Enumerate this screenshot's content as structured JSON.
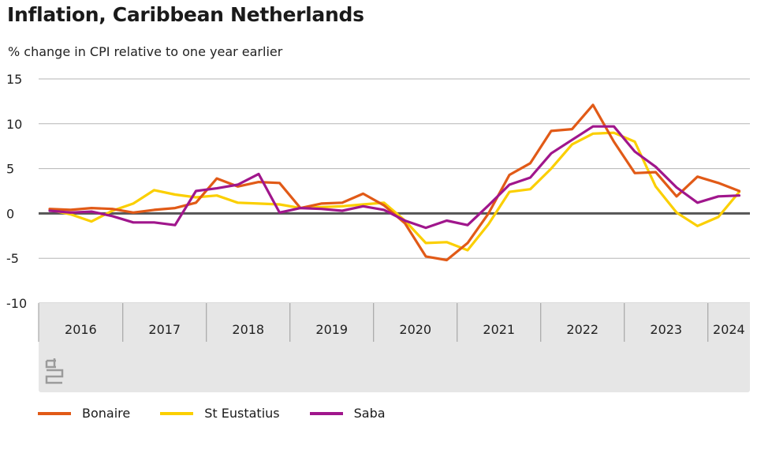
{
  "colors": {
    "bonaire": "#e15a17",
    "st_eustatius": "#fbcf00",
    "saba": "#a0168c",
    "band": "#e6e6e6"
  },
  "chart_data": {
    "type": "line",
    "title": "Inflation, Caribbean Netherlands",
    "ylabel": "% change in CPI relative to one year earlier",
    "ylim": [
      -10,
      15
    ],
    "yticks": [
      "15",
      "10",
      "5",
      "0",
      "-5",
      "-10"
    ],
    "year_labels": [
      "2016",
      "2017",
      "2018",
      "2019",
      "2020",
      "2021",
      "2022",
      "2023",
      "2024"
    ],
    "logo": "cbs",
    "x_quarters": [
      "2016 Q1",
      "2016 Q2",
      "2016 Q3",
      "2016 Q4",
      "2017 Q1",
      "2017 Q2",
      "2017 Q3",
      "2017 Q4",
      "2018 Q1",
      "2018 Q2",
      "2018 Q3",
      "2018 Q4",
      "2019 Q1",
      "2019 Q2",
      "2019 Q3",
      "2019 Q4",
      "2020 Q1",
      "2020 Q2",
      "2020 Q3",
      "2020 Q4",
      "2021 Q1",
      "2021 Q2",
      "2021 Q3",
      "2021 Q4",
      "2022 Q1",
      "2022 Q2",
      "2022 Q3",
      "2022 Q4",
      "2023 Q1",
      "2023 Q2",
      "2023 Q3",
      "2023 Q4",
      "2024 Q1",
      "2024 Q2"
    ],
    "series": [
      {
        "name": "Bonaire",
        "color_key": "bonaire",
        "values": [
          0.5,
          0.4,
          0.6,
          0.5,
          0.1,
          0.4,
          0.6,
          1.2,
          3.9,
          3.0,
          3.5,
          3.4,
          0.6,
          1.1,
          1.2,
          2.2,
          0.9,
          -1.1,
          -4.8,
          -5.2,
          -3.3,
          0.0,
          4.3,
          5.6,
          9.2,
          9.4,
          12.1,
          8.0,
          4.5,
          4.6,
          1.9,
          4.1,
          3.4,
          2.5
        ]
      },
      {
        "name": "St Eustatius",
        "color_key": "st_eustatius",
        "values": [
          0.4,
          -0.1,
          -0.9,
          0.3,
          1.1,
          2.6,
          2.1,
          1.8,
          2.0,
          1.2,
          1.1,
          1.0,
          0.6,
          0.7,
          0.8,
          1.0,
          1.2,
          -0.8,
          -3.3,
          -3.2,
          -4.1,
          -1.2,
          2.4,
          2.7,
          5.0,
          7.7,
          8.9,
          9.0,
          8.0,
          3.0,
          0.1,
          -1.4,
          -0.4,
          2.4
        ]
      },
      {
        "name": "Saba",
        "color_key": "saba",
        "values": [
          0.3,
          0.1,
          0.2,
          -0.3,
          -1.0,
          -1.0,
          -1.3,
          2.5,
          2.8,
          3.2,
          4.4,
          0.1,
          0.6,
          0.5,
          0.3,
          0.8,
          0.4,
          -0.8,
          -1.6,
          -0.8,
          -1.3,
          0.9,
          3.2,
          4.0,
          6.7,
          8.2,
          9.7,
          9.7,
          6.9,
          5.2,
          2.9,
          1.2,
          1.9,
          2.0
        ]
      }
    ]
  }
}
